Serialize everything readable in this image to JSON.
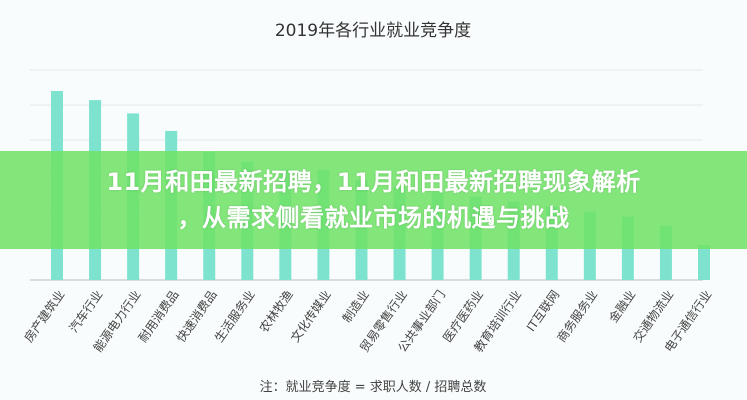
{
  "chart_data": {
    "type": "bar",
    "title": "2019年各行业就业竞争度",
    "note": "注：就业竞争度 = 求职人数 / 招聘总数",
    "categories": [
      "房产建筑业",
      "汽车行业",
      "能源电力行业",
      "耐用消费品",
      "快速消费品",
      "生活服务业",
      "农林牧渔",
      "文化传媒业",
      "制造业",
      "贸易零售行业",
      "公共事业部门",
      "医疗医药业",
      "教育培训行业",
      "IT互联网",
      "商务服务业",
      "金融业",
      "交通物流业",
      "电子通信行业"
    ],
    "values": [
      5.4,
      5.14,
      4.76,
      4.26,
      3.67,
      3.38,
      3.16,
      3.14,
      2.86,
      2.67,
      2.52,
      2.38,
      2.24,
      2.1,
      1.95,
      1.81,
      1.55,
      1.0
    ],
    "ylim": [
      0,
      6
    ],
    "grid": true,
    "y_tick_labels_shown": false,
    "bar_color": "#7de3cf"
  },
  "banner": {
    "line1": "11月和田最新招聘，11月和田最新招聘现象解析",
    "line2": "，从需求侧看就业市场的机遇与挑战",
    "color": "#6ee264"
  }
}
